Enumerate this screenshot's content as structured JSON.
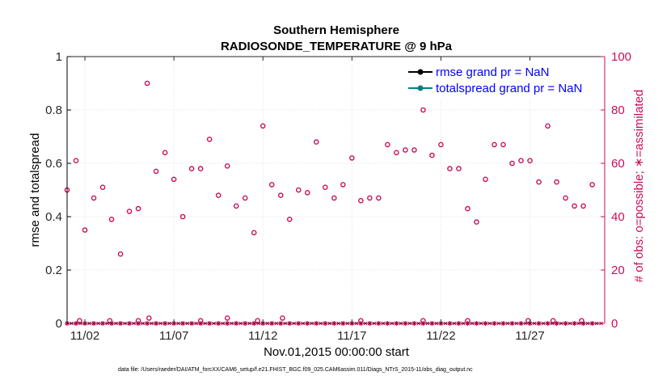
{
  "chart_data": {
    "type": "scatter",
    "title": "Southern Hemisphere",
    "subtitle": "RADIOSONDE_TEMPERATURE @ 9 hPa",
    "xlabel": "Nov.01,2015 00:00:00 start",
    "ylabel_left": "rmse and totalspread",
    "ylabel_right": "# of obs: o=possible; ∗=assimilated",
    "footnote": "data file: /Users/raeder/DAI/ATM_forcXX/CAM6_setup/f.e21.FHIST_BGC.f09_025.CAM6assim.011/Diags_NTrS_2015-11/obs_diag_output.nc",
    "x_day_range": [
      1.0,
      31.2
    ],
    "ylim_left": [
      0,
      1
    ],
    "ylim_right": [
      0,
      100
    ],
    "x_ticks": [
      {
        "day": 2,
        "label": "11/02"
      },
      {
        "day": 7,
        "label": "11/07"
      },
      {
        "day": 12,
        "label": "11/12"
      },
      {
        "day": 17,
        "label": "11/17"
      },
      {
        "day": 22,
        "label": "11/22"
      },
      {
        "day": 27,
        "label": "11/27"
      }
    ],
    "y_ticks_left": [
      "0",
      "0.2",
      "0.4",
      "0.6",
      "0.8",
      "1"
    ],
    "y_ticks_right": [
      "0",
      "20",
      "40",
      "60",
      "80",
      "100"
    ],
    "legend": [
      {
        "label": "rmse grand pr = NaN",
        "color": "#000000"
      },
      {
        "label": "totalspread grand pr = NaN",
        "color": "#008080"
      }
    ],
    "legend_position": "top-right",
    "colors": {
      "obs": "#cc0c5a",
      "axis_left": "#000000",
      "axis_right": "#cc0c5a"
    },
    "series": [
      {
        "name": "# obs possible",
        "marker": "o",
        "day": [
          1.0,
          1.5,
          2.0,
          2.5,
          3.0,
          3.5,
          4.0,
          4.5,
          5.0,
          5.5,
          6.0,
          6.5,
          7.0,
          7.5,
          8.0,
          8.5,
          9.0,
          9.5,
          10.0,
          10.5,
          11.0,
          11.5,
          12.0,
          12.5,
          13.0,
          13.5,
          14.0,
          14.5,
          15.0,
          15.5,
          16.0,
          16.5,
          17.0,
          17.5,
          18.0,
          18.5,
          19.0,
          19.5,
          20.0,
          20.5,
          21.0,
          21.5,
          22.0,
          22.5,
          23.0,
          23.5,
          24.0,
          24.5,
          25.0,
          25.5,
          26.0,
          26.5,
          27.0,
          27.5,
          28.0,
          28.5,
          29.0,
          29.5,
          30.0,
          30.5
        ],
        "values": [
          50,
          61,
          35,
          47,
          51,
          39,
          26,
          42,
          43,
          90,
          57,
          64,
          54,
          40,
          58,
          58,
          69,
          48,
          59,
          44,
          47,
          34,
          74,
          52,
          48,
          39,
          50,
          49,
          68,
          51,
          47,
          52,
          62,
          46,
          47,
          47,
          67,
          64,
          65,
          65,
          80,
          63,
          67,
          58,
          58,
          43,
          38,
          54,
          67,
          67,
          60,
          61,
          61,
          53,
          74,
          53,
          47,
          44,
          44,
          52
        ]
      },
      {
        "name": "# obs assimilated",
        "marker": "*",
        "day": [
          1.0,
          1.5,
          2.0,
          2.5,
          3.0,
          3.5,
          4.0,
          4.5,
          5.0,
          5.5,
          6.0,
          6.5,
          7.0,
          7.5,
          8.0,
          8.5,
          9.0,
          9.5,
          10.0,
          10.5,
          11.0,
          11.5,
          12.0,
          12.5,
          13.0,
          13.5,
          14.0,
          14.5,
          15.0,
          15.5,
          16.0,
          16.5,
          17.0,
          17.5,
          18.0,
          18.5,
          19.0,
          19.5,
          20.0,
          20.5,
          21.0,
          21.5,
          22.0,
          22.5,
          23.0,
          23.5,
          24.0,
          24.5,
          25.0,
          25.5,
          26.0,
          26.5,
          27.0,
          27.5,
          28.0,
          28.5,
          29.0,
          29.5,
          30.0,
          30.5
        ],
        "values": [
          0,
          0,
          0,
          0,
          0,
          0,
          0,
          0,
          0,
          0,
          0,
          0,
          0,
          0,
          0,
          0,
          0,
          0,
          0,
          0,
          0,
          0,
          0,
          0,
          0,
          0,
          0,
          0,
          0,
          0,
          0,
          0,
          0,
          0,
          0,
          0,
          0,
          0,
          0,
          0,
          0,
          0,
          0,
          0,
          0,
          0,
          0,
          0,
          0,
          0,
          0,
          0,
          0,
          0,
          0,
          0,
          0,
          0,
          0,
          0
        ]
      },
      {
        "name": "# obs possible (near zero)",
        "marker": "o",
        "day": [
          1.7,
          3.4,
          5.0,
          5.6,
          8.5,
          10.0,
          11.7,
          13.1,
          17.5,
          21.0,
          23.5,
          26.9,
          28.3,
          29.9
        ],
        "values": [
          1,
          1,
          1,
          2,
          1,
          2,
          1,
          2,
          1,
          1,
          1,
          1,
          1,
          1
        ]
      }
    ]
  }
}
